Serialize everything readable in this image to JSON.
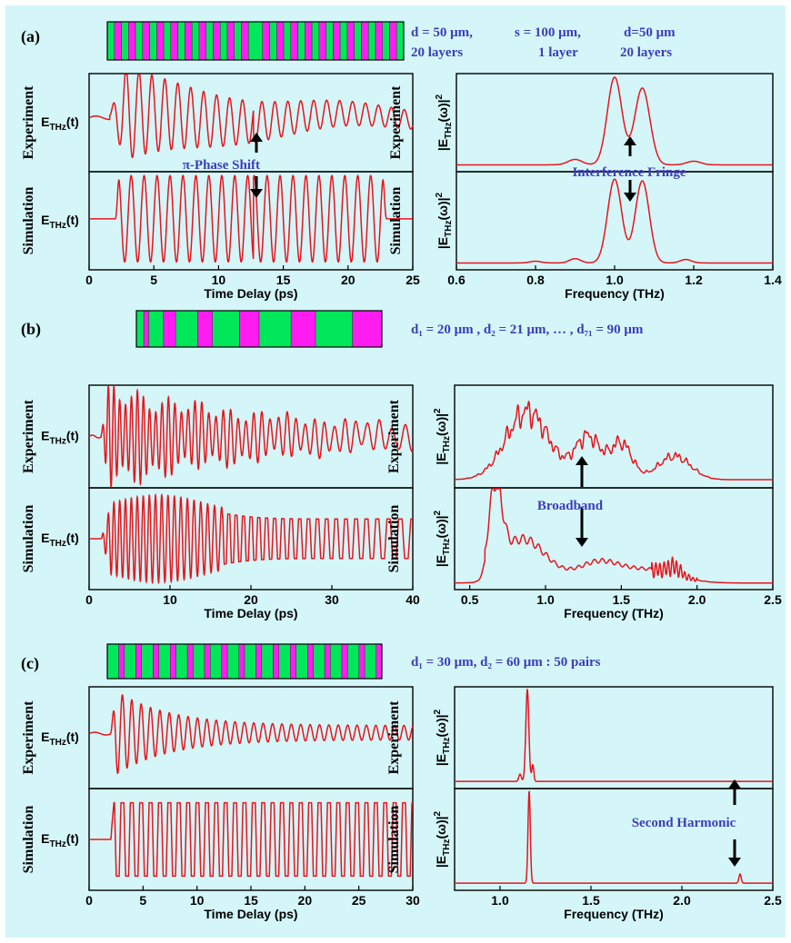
{
  "colors": {
    "background": "#d4f6f9",
    "trace": "#e8141c",
    "annotation_text": "#3d3db8",
    "stripe_a": "#00e85a",
    "stripe_b": "#ff1cf0",
    "frame": "#000000"
  },
  "panels": [
    {
      "label": "(a)",
      "structure": {
        "pattern": "periodic-block",
        "lines": [
          [
            "d = 50 μm,",
            "s = 100 μm,",
            "d=50 μm"
          ],
          [
            "20 layers",
            "1 layer",
            "20 layers"
          ]
        ]
      },
      "annotations": {
        "time": "π-Phase Shift",
        "freq": "Interference Fringe"
      }
    },
    {
      "label": "(b)",
      "structure": {
        "pattern": "chirped",
        "lines": [
          [
            "d₁ = 20 μm , d₂ = 21 μm, … , d₇₁ = 90 μm"
          ]
        ]
      },
      "annotations": {
        "freq": "Broadband"
      }
    },
    {
      "label": "(c)",
      "structure": {
        "pattern": "periodic-block",
        "lines": [
          [
            "d₁ = 30 μm,  d₂ = 60 μm : 50 pairs"
          ]
        ]
      },
      "annotations": {
        "freq": "Second Harmonic"
      }
    }
  ],
  "chart_data": [
    {
      "type": "line",
      "panel": "(a)",
      "domain": "time",
      "xlabel": "Time Delay (ps)",
      "xlim": [
        0,
        25
      ],
      "xticks": [
        0,
        5,
        10,
        15,
        20,
        25
      ],
      "row_labels": [
        "Experiment",
        "Simulation"
      ],
      "ylabel": "E_THz(t)",
      "description": "21 oscillation cycles (period ~1 ps) beginning near 1.6 ps; experiment shows decaying amplitude with a phase kink at ~12.7 ps; simulation shows a flat-top train from ~2 to ~23 ps with a pi-phase shift at ~12.7 ps",
      "params": {
        "start_ps": 1.6,
        "end_ps": 23.0,
        "period_ps": 1.0,
        "phase_shift_ps": 12.7
      }
    },
    {
      "type": "line",
      "panel": "(a)",
      "domain": "frequency",
      "xlabel": "Frequency (THz)",
      "xlim": [
        0.6,
        1.4
      ],
      "xticks": [
        0.6,
        0.8,
        1.0,
        1.2,
        1.4
      ],
      "row_labels": [
        "Experiment",
        "Simulation"
      ],
      "ylabel": "|E_THz(ω)|²",
      "series": [
        {
          "name": "Experiment",
          "peaks_THz": [
            1.0,
            1.07
          ],
          "dip_THz": 1.035
        },
        {
          "name": "Simulation",
          "peaks_THz": [
            1.0,
            1.07
          ],
          "dip_THz": 1.035
        }
      ]
    },
    {
      "type": "line",
      "panel": "(b)",
      "domain": "time",
      "xlabel": "Time Delay (ps)",
      "xlim": [
        0,
        40
      ],
      "xticks": [
        0,
        10,
        20,
        30,
        40
      ],
      "row_labels": [
        "Experiment",
        "Simulation"
      ],
      "ylabel": "E_THz(t)",
      "description": "chirped oscillation starting near 1.5 ps, fast at early time (~1.4 THz) and slowing toward ~0.7 THz; experiment amplitude decays, simulation remains large to 40 ps",
      "params": {
        "start_ps": 1.5,
        "end_ps": 40
      }
    },
    {
      "type": "line",
      "panel": "(b)",
      "domain": "frequency",
      "xlabel": "Frequency (THz)",
      "xlim": [
        0.4,
        2.5
      ],
      "xticks": [
        0.5,
        1.0,
        1.5,
        2.0,
        2.5
      ],
      "row_labels": [
        "Experiment",
        "Simulation"
      ],
      "ylabel": "|E_THz(ω)|²",
      "series": [
        {
          "name": "Experiment",
          "band_THz": [
            0.55,
            2.3
          ],
          "max_THz": 0.85
        },
        {
          "name": "Simulation",
          "band_THz": [
            0.55,
            2.2
          ],
          "max_THz": 0.68
        }
      ]
    },
    {
      "type": "line",
      "panel": "(c)",
      "domain": "time",
      "xlabel": "Time Delay (ps)",
      "xlim": [
        0,
        30
      ],
      "xticks": [
        0,
        5,
        10,
        15,
        20,
        25,
        30
      ],
      "row_labels": [
        "Experiment",
        "Simulation"
      ],
      "ylabel": "E_THz(t)",
      "description": "oscillation at ~1.15 THz starting near 2.0 ps; experiment decays, simulation is a flat-top square-like train to the end of the window",
      "params": {
        "start_ps": 2.0,
        "period_ps": 0.87
      }
    },
    {
      "type": "line",
      "panel": "(c)",
      "domain": "frequency",
      "xlabel": "Frequency (THz)",
      "xlim": [
        0.75,
        2.5
      ],
      "xticks": [
        1.0,
        1.5,
        2.0,
        2.5
      ],
      "row_labels": [
        "Experiment",
        "Simulation"
      ],
      "ylabel": "|E_THz(ω)|²",
      "series": [
        {
          "name": "Experiment",
          "peaks_THz": [
            1.15
          ]
        },
        {
          "name": "Simulation",
          "peaks_THz": [
            1.16,
            2.32
          ]
        }
      ]
    }
  ]
}
